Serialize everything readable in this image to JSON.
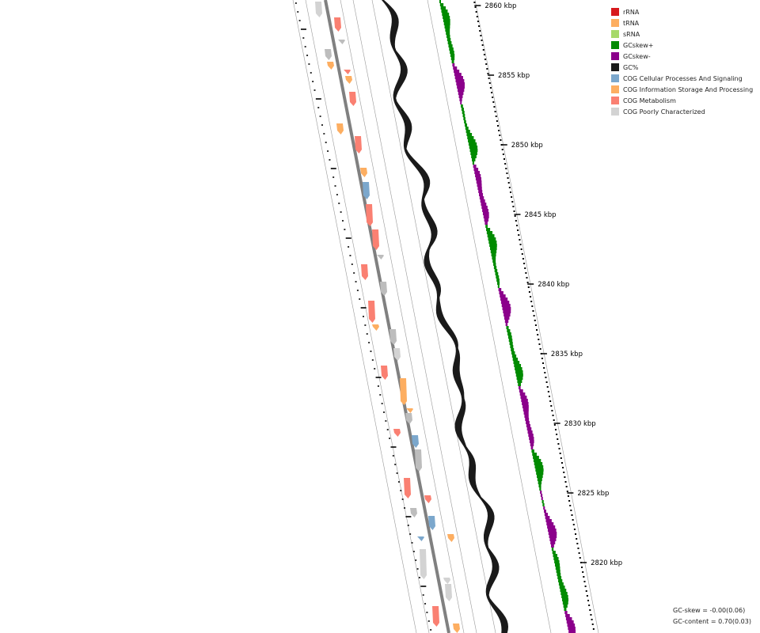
{
  "scale_labels": [
    {
      "kbp": 2860,
      "text": "2860 kbp"
    },
    {
      "kbp": 2855,
      "text": "2855 kbp"
    },
    {
      "kbp": 2850,
      "text": "2850 kbp"
    },
    {
      "kbp": 2845,
      "text": "2845 kbp"
    },
    {
      "kbp": 2840,
      "text": "2840 kbp"
    },
    {
      "kbp": 2835,
      "text": "2835 kbp"
    },
    {
      "kbp": 2830,
      "text": "2830 kbp"
    },
    {
      "kbp": 2825,
      "text": "2825 kbp"
    },
    {
      "kbp": 2820,
      "text": "2820 kbp"
    }
  ],
  "legend": [
    {
      "label": "rRNA",
      "color": "#d7191c"
    },
    {
      "label": "tRNA",
      "color": "#fdae61"
    },
    {
      "label": "sRNA",
      "color": "#a6d96a"
    },
    {
      "label": "GCskew+",
      "color": "#008b00"
    },
    {
      "label": "GCskew-",
      "color": "#8b008b"
    },
    {
      "label": "GC%",
      "color": "#1a1a1a"
    },
    {
      "label": "COG Cellular Processes And Signaling",
      "color": "#7ba7cc"
    },
    {
      "label": "COG Information Storage And Processing",
      "color": "#fdae61"
    },
    {
      "label": "COG Metabolism",
      "color": "#fa8072"
    },
    {
      "label": "COG Poorly Characterized",
      "color": "#d3d3d3"
    }
  ],
  "stats": {
    "gc_skew": "GC-skew = -0.00(0.06)",
    "gc_content": "GC-content = 0.70(0.03)"
  },
  "colors": {
    "backbone": "#808080",
    "guide": "#999999",
    "gc": "#1a1a1a",
    "skew_pos": "#008b00",
    "skew_neg": "#8b008b",
    "info": "#fdae61",
    "metabolism": "#fa8072",
    "cellular": "#7ba7cc",
    "poorly": "#d3d3d3",
    "poorly_dark": "#bdbdbd"
  }
}
